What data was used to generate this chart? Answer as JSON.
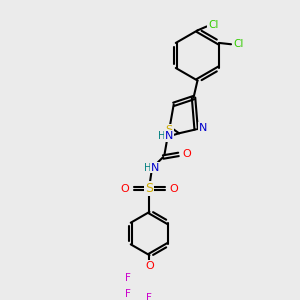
{
  "background_color": "#ebebeb",
  "colors": {
    "C": "#000000",
    "N": "#0000cc",
    "O": "#ff0000",
    "S_thio": "#ccaa00",
    "S_sulfo": "#ccaa00",
    "F": "#cc00cc",
    "Cl": "#33cc00",
    "H": "#008080"
  },
  "figsize": [
    3.0,
    3.0
  ],
  "dpi": 100
}
